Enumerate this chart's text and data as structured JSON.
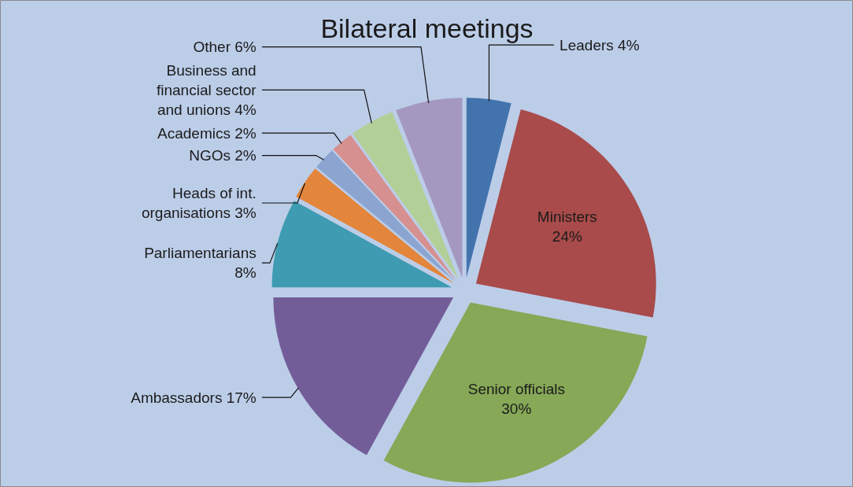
{
  "chart_data": {
    "type": "pie",
    "title": "Bilateral meetings",
    "categories": [
      "Leaders",
      "Ministers",
      "Senior officials",
      "Ambassadors",
      "Parliamentarians",
      "Heads of int. organisations",
      "NGOs",
      "Academics",
      "Business and financial sector and unions",
      "Other"
    ],
    "values": [
      4,
      24,
      30,
      17,
      8,
      3,
      2,
      2,
      4,
      6
    ],
    "value_labels": [
      "4%",
      "24%",
      "30%",
      "17%",
      "8%",
      "3%",
      "2%",
      "2%",
      "4%",
      "6%"
    ],
    "colors": [
      "#4273ad",
      "#a84b4a",
      "#86a857",
      "#735d99",
      "#3e9bb1",
      "#e3853a",
      "#8ba5d0",
      "#d69090",
      "#b2cf97",
      "#a598c0"
    ]
  }
}
